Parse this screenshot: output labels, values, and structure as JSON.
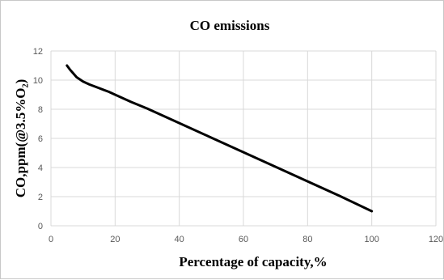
{
  "chart_data": {
    "type": "line",
    "title": "CO emissions",
    "xlabel": "Percentage of capacity,%",
    "ylabel": "CO,ppm(@3.5%O₂)",
    "xlim": [
      0,
      120
    ],
    "ylim": [
      0,
      12
    ],
    "x_ticks": [
      "0",
      "20",
      "40",
      "60",
      "80",
      "100",
      "120"
    ],
    "y_ticks": [
      "0",
      "2",
      "4",
      "6",
      "8",
      "10",
      "12"
    ],
    "grid": true,
    "legend": "none",
    "series": [
      {
        "color": "#000000",
        "x": [
          5,
          6,
          7,
          8,
          10,
          12,
          15,
          18,
          20,
          25,
          30,
          40,
          50,
          60,
          70,
          80,
          90,
          100
        ],
        "y": [
          11.0,
          10.7,
          10.45,
          10.2,
          9.9,
          9.7,
          9.45,
          9.2,
          9.0,
          8.5,
          8.05,
          7.05,
          6.05,
          5.05,
          4.05,
          3.05,
          2.05,
          1.0
        ]
      }
    ]
  }
}
